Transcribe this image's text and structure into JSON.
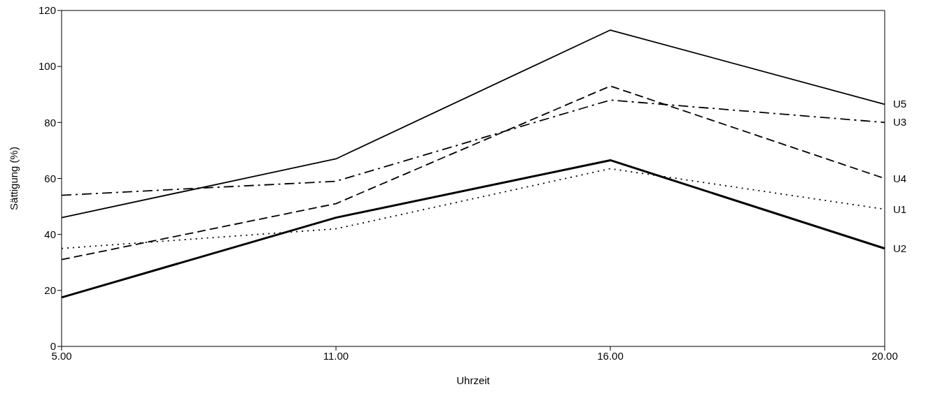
{
  "chart_data": {
    "type": "line",
    "xlabel": "Uhrzeit",
    "ylabel": "Sättigung (%)",
    "categories": [
      "5.00",
      "11.00",
      "16.00",
      "20.00"
    ],
    "series": [
      {
        "name": "U1",
        "color": "#000000",
        "line_style": "dotted",
        "values": [
          35,
          42,
          63.5,
          49
        ]
      },
      {
        "name": "U2",
        "color": "#000000",
        "line_style": "solid",
        "values": [
          17.5,
          46,
          66.5,
          35
        ]
      },
      {
        "name": "U3",
        "color": "#000000",
        "line_style": "dashdot",
        "values": [
          54,
          59,
          88,
          80
        ]
      },
      {
        "name": "U4",
        "color": "#000000",
        "line_style": "dashed",
        "values": [
          31,
          51,
          93,
          60
        ]
      },
      {
        "name": "U5",
        "color": "#000000",
        "line_style": "solid",
        "values": [
          46,
          67,
          113,
          86.5
        ]
      }
    ],
    "ylim": [
      0,
      120
    ],
    "yticks": [
      0,
      20,
      40,
      60,
      80,
      100,
      120
    ],
    "marker": "none"
  }
}
